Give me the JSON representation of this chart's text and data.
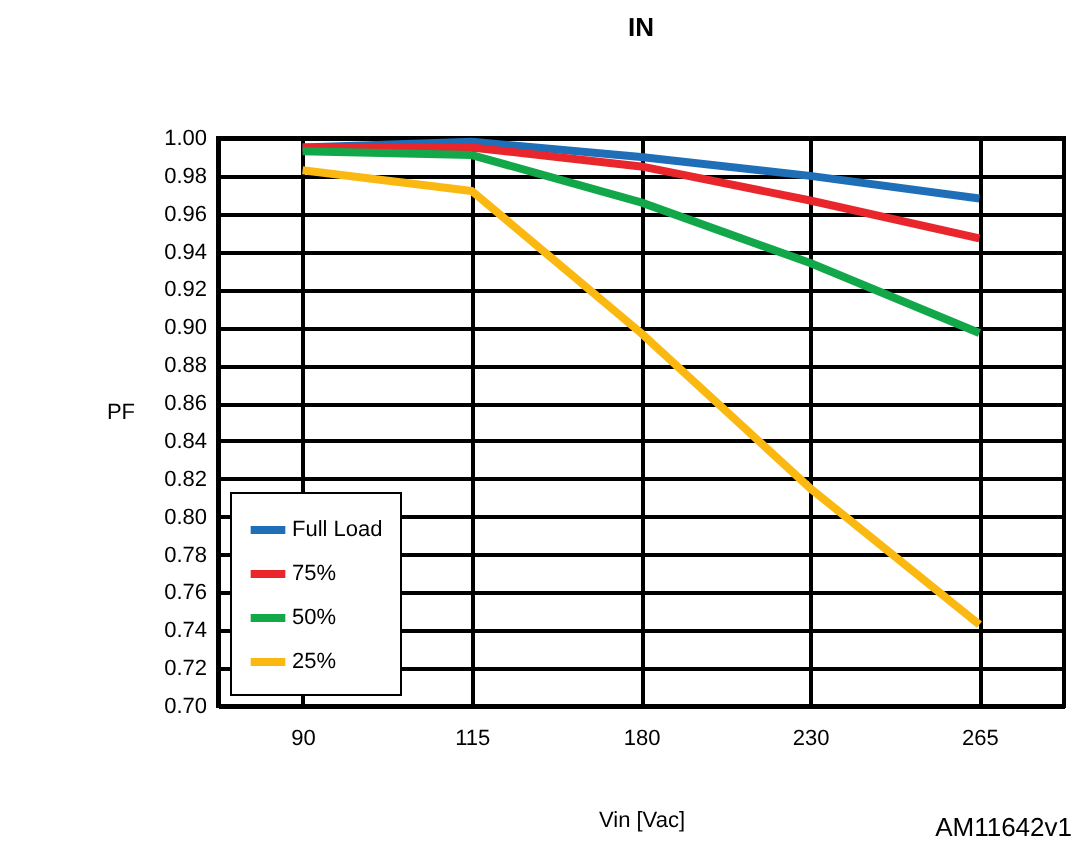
{
  "chart_data": {
    "type": "line",
    "title": "IN",
    "xlabel": "Vin [Vac]",
    "ylabel": "PF",
    "categories": [
      "90",
      "115",
      "180",
      "230",
      "265"
    ],
    "series": [
      {
        "name": "Full Load",
        "color": "#1f6fb8",
        "values": [
          0.995,
          0.998,
          0.99,
          0.98,
          0.968
        ]
      },
      {
        "name": "75%",
        "color": "#e8262b",
        "values": [
          0.995,
          0.995,
          0.985,
          0.967,
          0.947
        ]
      },
      {
        "name": "50%",
        "color": "#12a84a",
        "values": [
          0.993,
          0.991,
          0.966,
          0.934,
          0.897
        ]
      },
      {
        "name": "25%",
        "color": "#fbb811",
        "values": [
          0.983,
          0.972,
          0.897,
          0.815,
          0.743
        ]
      }
    ],
    "ylim": [
      0.7,
      1.0
    ],
    "yticks": [
      {
        "value": 0.7,
        "label": "0.70"
      },
      {
        "value": 0.72,
        "label": "0.72"
      },
      {
        "value": 0.74,
        "label": "0.74"
      },
      {
        "value": 0.76,
        "label": "0.76"
      },
      {
        "value": 0.78,
        "label": "0.78"
      },
      {
        "value": 0.8,
        "label": "0.80"
      },
      {
        "value": 0.82,
        "label": "0.82"
      },
      {
        "value": 0.84,
        "label": "0.84"
      },
      {
        "value": 0.86,
        "label": "0.86"
      },
      {
        "value": 0.88,
        "label": "0.88"
      },
      {
        "value": 0.9,
        "label": "0.90"
      },
      {
        "value": 0.92,
        "label": "0.92"
      },
      {
        "value": 0.94,
        "label": "0.94"
      },
      {
        "value": 0.96,
        "label": "0.96"
      },
      {
        "value": 0.98,
        "label": "0.98"
      },
      {
        "value": 1.0,
        "label": "1.00"
      }
    ],
    "grid": true,
    "legend": "bottom left",
    "marker": "none",
    "line_style": "solid",
    "annotations": [
      "AM11642v1"
    ]
  }
}
